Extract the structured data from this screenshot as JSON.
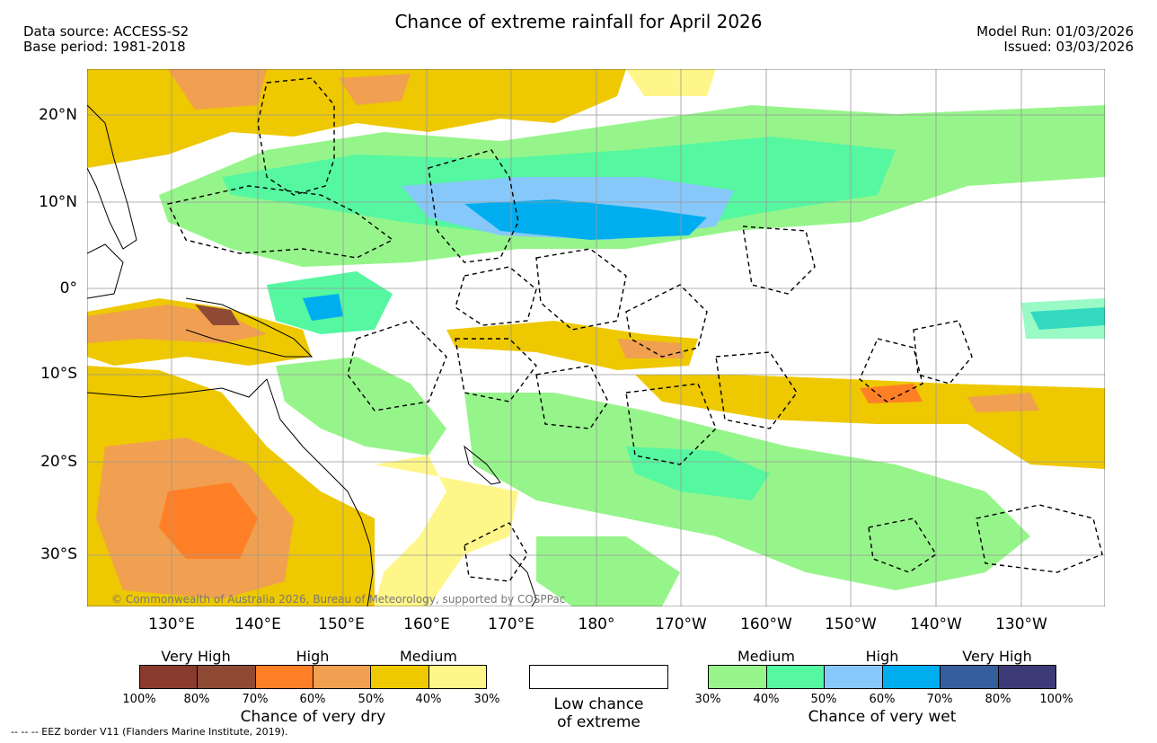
{
  "header": {
    "title": "Chance of extreme rainfall for April 2026",
    "data_source": "Data source: ACCESS-S2",
    "base_period": "Base period: 1981-2018",
    "model_run": "Model Run: 01/03/2026",
    "issued": "Issued: 03/03/2026"
  },
  "map": {
    "lat_labels": [
      "20°N",
      "10°N",
      "0°",
      "10°S",
      "20°S",
      "30°S"
    ],
    "lon_labels": [
      "130°E",
      "140°E",
      "150°E",
      "160°E",
      "170°E",
      "180°",
      "170°W",
      "160°W",
      "150°W",
      "140°W",
      "130°W"
    ],
    "copyright": "© Commonwealth of Australia 2026, Bureau of Meteorology, supported by COSPPac"
  },
  "legend": {
    "dry": {
      "categories": [
        "Very High",
        "High",
        "Medium"
      ],
      "percents": [
        "100%",
        "80%",
        "70%",
        "60%",
        "50%",
        "40%",
        "30%"
      ],
      "colors": [
        "#8b3a2e",
        "#8f4a36",
        "#ff7f27",
        "#f0a050",
        "#eec800",
        "#fff68a"
      ],
      "caption": "Chance of very dry"
    },
    "low": {
      "caption_line1": "Low chance",
      "caption_line2": "of extreme"
    },
    "wet": {
      "categories": [
        "Medium",
        "High",
        "Very High"
      ],
      "percents": [
        "30%",
        "40%",
        "50%",
        "60%",
        "70%",
        "80%",
        "100%"
      ],
      "colors": [
        "#96f58a",
        "#55f7a0",
        "#87c8fa",
        "#00aeef",
        "#355f9c",
        "#3d3a78"
      ],
      "caption": "Chance of very wet"
    }
  },
  "footer": {
    "eez_note": "-- -- -- EEZ border V11 (Flanders Marine Institute, 2019)."
  }
}
